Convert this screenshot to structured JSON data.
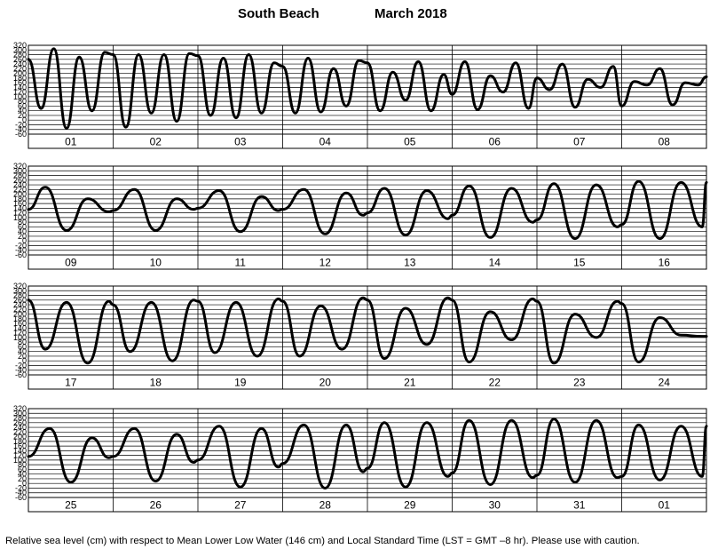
{
  "header": {
    "location": "South Beach",
    "month_year": "March   2018"
  },
  "footer": {
    "caption": "Relative sea level (cm) with respect to Mean Lower Low Water (146 cm) and Local Standard Time (LST = GMT –8 hr). Please use with caution."
  },
  "chart_data": [
    {
      "type": "line",
      "x_tick_labels": [
        "01",
        "02",
        "03",
        "04",
        "05",
        "06",
        "07",
        "08"
      ],
      "y_tick_labels": [
        "320",
        "300",
        "280",
        "260",
        "240",
        "220",
        "200",
        "180",
        "160",
        "140",
        "120",
        "100",
        "80",
        "60",
        "40",
        "20",
        "0",
        "-20",
        "-40",
        "-60"
      ],
      "ylim": [
        -60,
        320
      ],
      "grid": true,
      "series": [
        {
          "x": [
            0,
            0.15,
            0.3,
            0.45,
            0.6,
            0.75,
            0.9,
            1.0,
            1.15,
            1.3,
            1.45,
            1.6,
            1.75,
            1.9,
            2.0,
            2.15,
            2.3,
            2.45,
            2.6,
            2.75,
            2.9,
            3.0,
            3.15,
            3.3,
            3.45,
            3.6,
            3.75,
            3.9,
            4.0,
            4.15,
            4.3,
            4.45,
            4.6,
            4.75,
            4.9,
            5.0,
            5.15,
            5.3,
            5.45,
            5.6,
            5.75,
            5.9,
            6.0,
            6.15,
            6.3,
            6.45,
            6.6,
            6.75,
            6.9,
            7.0,
            7.15,
            7.3,
            7.45,
            7.6,
            7.75,
            7.9,
            8.0
          ],
          "y": [
            260,
            50,
            305,
            -35,
            270,
            40,
            290,
            280,
            -30,
            280,
            30,
            280,
            -5,
            285,
            275,
            20,
            265,
            10,
            280,
            30,
            245,
            230,
            30,
            265,
            35,
            220,
            60,
            255,
            245,
            40,
            205,
            85,
            250,
            40,
            195,
            110,
            250,
            45,
            190,
            120,
            245,
            50,
            180,
            130,
            240,
            55,
            175,
            140,
            230,
            60,
            165,
            150,
            220,
            65,
            160,
            150,
            185
          ]
        }
      ]
    },
    {
      "type": "line",
      "x_tick_labels": [
        "09",
        "10",
        "11",
        "12",
        "13",
        "14",
        "15",
        "16"
      ],
      "y_tick_labels": [
        "320",
        "300",
        "280",
        "260",
        "240",
        "220",
        "200",
        "180",
        "160",
        "140",
        "120",
        "100",
        "80",
        "60",
        "40",
        "20",
        "0",
        "-20",
        "-40",
        "-60"
      ],
      "ylim": [
        -60,
        320
      ],
      "grid": true,
      "series": [
        {
          "x": [
            0,
            0.2,
            0.45,
            0.7,
            0.95,
            1.0,
            1.25,
            1.5,
            1.75,
            1.95,
            2.0,
            2.25,
            2.5,
            2.75,
            2.95,
            3.0,
            3.25,
            3.5,
            3.75,
            3.95,
            4.0,
            4.2,
            4.45,
            4.7,
            4.95,
            5.0,
            5.2,
            5.45,
            5.7,
            5.95,
            6.0,
            6.2,
            6.45,
            6.7,
            6.95,
            7.0,
            7.2,
            7.45,
            7.7,
            7.95,
            8.0
          ],
          "y": [
            135,
            230,
            45,
            180,
            125,
            130,
            220,
            45,
            180,
            135,
            140,
            215,
            40,
            190,
            130,
            135,
            220,
            30,
            205,
            110,
            120,
            225,
            25,
            215,
            95,
            110,
            235,
            15,
            225,
            80,
            90,
            245,
            10,
            240,
            60,
            70,
            255,
            10,
            250,
            60,
            250
          ]
        }
      ]
    },
    {
      "type": "line",
      "x_tick_labels": [
        "17",
        "18",
        "19",
        "20",
        "21",
        "22",
        "23",
        "24"
      ],
      "y_tick_labels": [
        "320",
        "300",
        "280",
        "260",
        "240",
        "220",
        "200",
        "180",
        "160",
        "140",
        "120",
        "100",
        "80",
        "60",
        "40",
        "20",
        "0",
        "-20",
        "-40",
        "-60"
      ],
      "ylim": [
        -60,
        320
      ],
      "grid": true,
      "series": [
        {
          "x": [
            0,
            0.2,
            0.45,
            0.7,
            0.95,
            1.0,
            1.2,
            1.45,
            1.7,
            1.95,
            2.0,
            2.2,
            2.45,
            2.7,
            2.95,
            3.0,
            3.2,
            3.45,
            3.7,
            3.95,
            4.0,
            4.2,
            4.45,
            4.7,
            4.95,
            5.0,
            5.2,
            5.45,
            5.7,
            5.95,
            6.0,
            6.2,
            6.45,
            6.7,
            6.95,
            7.0,
            7.2,
            7.45,
            7.7,
            7.95,
            8.0
          ],
          "y": [
            260,
            50,
            250,
            -10,
            255,
            240,
            40,
            250,
            0,
            260,
            255,
            35,
            250,
            20,
            265,
            255,
            20,
            235,
            50,
            270,
            260,
            10,
            225,
            70,
            270,
            260,
            -5,
            210,
            90,
            265,
            255,
            -10,
            200,
            100,
            255,
            245,
            -5,
            185,
            110,
            105,
            105
          ]
        }
      ]
    },
    {
      "type": "line",
      "x_tick_labels": [
        "25",
        "26",
        "27",
        "28",
        "29",
        "30",
        "31",
        "01"
      ],
      "y_tick_labels": [
        "320",
        "300",
        "280",
        "260",
        "240",
        "220",
        "200",
        "180",
        "160",
        "140",
        "120",
        "100",
        "80",
        "60",
        "40",
        "20",
        "0",
        "-20",
        "-40",
        "-60"
      ],
      "ylim": [
        -60,
        320
      ],
      "grid": true,
      "series": [
        {
          "x": [
            0,
            0.25,
            0.5,
            0.75,
            0.95,
            1.0,
            1.25,
            1.5,
            1.75,
            1.95,
            2.0,
            2.25,
            2.5,
            2.75,
            2.95,
            3.0,
            3.25,
            3.5,
            3.75,
            3.95,
            4.0,
            4.2,
            4.45,
            4.7,
            4.95,
            5.0,
            5.2,
            5.45,
            5.7,
            5.95,
            6.0,
            6.2,
            6.45,
            6.7,
            6.95,
            7.0,
            7.2,
            7.45,
            7.7,
            7.95,
            8.0
          ],
          "y": [
            115,
            235,
            5,
            195,
            110,
            115,
            235,
            10,
            210,
            90,
            100,
            245,
            -15,
            235,
            70,
            85,
            250,
            -20,
            250,
            50,
            65,
            260,
            -15,
            260,
            30,
            45,
            270,
            -5,
            270,
            25,
            35,
            275,
            5,
            270,
            25,
            30,
            250,
            15,
            245,
            30,
            245
          ]
        }
      ]
    }
  ]
}
